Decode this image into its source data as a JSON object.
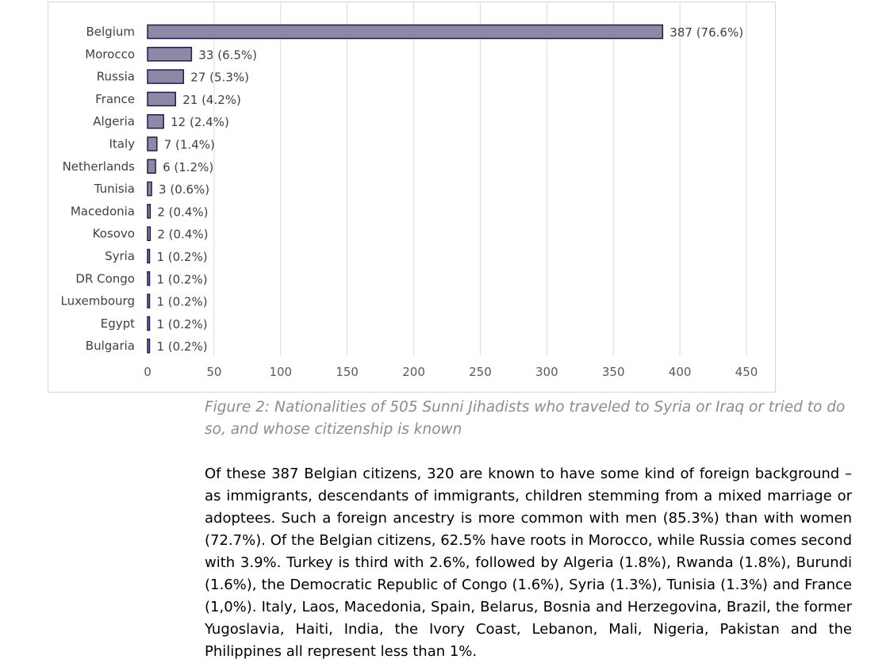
{
  "chart_data": {
    "type": "bar",
    "orientation": "horizontal",
    "categories": [
      "Belgium",
      "Morocco",
      "Russia",
      "France",
      "Algeria",
      "Italy",
      "Netherlands",
      "Tunisia",
      "Macedonia",
      "Kosovo",
      "Syria",
      "DR Congo",
      "Luxembourg",
      "Egypt",
      "Bulgaria"
    ],
    "values": [
      387,
      33,
      27,
      21,
      12,
      7,
      6,
      3,
      2,
      2,
      1,
      1,
      1,
      1,
      1
    ],
    "data_labels": [
      "387 (76.6%)",
      "33 (6.5%)",
      "27 (5.3%)",
      "21 (4.2%)",
      "12 (2.4%)",
      "7 (1.4%)",
      "6 (1.2%)",
      "3 (0.6%)",
      "2 (0.4%)",
      "2 (0.4%)",
      "1 (0.2%)",
      "1 (0.2%)",
      "1 (0.2%)",
      "1 (0.2%)",
      "1 (0.2%)"
    ],
    "x_ticks": [
      0,
      50,
      100,
      150,
      200,
      250,
      300,
      350,
      400,
      450
    ],
    "xlim": [
      0,
      450
    ],
    "title": "",
    "xlabel": "",
    "ylabel": "",
    "grid": "vertical",
    "colors": {
      "bar_fill": "#8c89a6",
      "bar_stroke": "#1f1a4d",
      "grid": "#d9d9d9"
    }
  },
  "caption": "Figure 2: Nationalities of 505 Sunni Jihadists who traveled to Syria or Iraq or tried to do so, and whose citizenship is known",
  "body_paragraph": "Of these 387 Belgian citizens, 320 are known to have some kind of foreign background – as immigrants, descendants of immigrants, children stemming from a mixed marriage or adoptees. Such a foreign ancestry is more common with men (85.3%) than with women (72.7%). Of the Belgian citizens, 62.5% have roots in Morocco, while Russia comes second with 3.9%. Turkey is third with 2.6%, followed by Algeria (1.8%), Rwanda (1.8%), Burundi (1.6%), the Democratic Republic of Congo (1.6%), Syria (1.3%), Tunisia (1.3%) and France (1,0%). Italy, Laos, Macedonia, Spain, Belarus, Bosnia and Herzegovina, Brazil, the former Yugoslavia, Haiti, India, the Ivory Coast, Lebanon, Mali, Nigeria, Pakistan and the Philippines all represent less than 1%."
}
